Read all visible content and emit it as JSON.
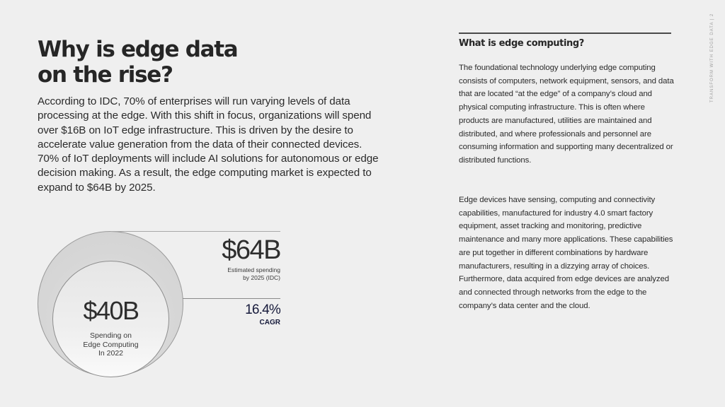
{
  "page": {
    "title_line1": "Why is edge data",
    "title_line2": "on the rise?",
    "intro": "According to IDC, 70% of enterprises will run varying levels of data processing at the edge. With this shift in focus, organizations will spend over $16B on IoT edge infrastructure. This is driven by the desire to accelerate value generation from the data of their connected devices. 70% of IoT deployments will include AI solutions for autonomous or edge decision making. As a result, the edge computing market is expected to expand to $64B by 2025.",
    "side_label": "TRANSFORM WITH EDGE DATA | 2"
  },
  "graphic": {
    "current": {
      "value": "$40B",
      "caption_line1": "Spending on",
      "caption_line2": "Edge Computing",
      "caption_line3": "In 2022"
    },
    "projected": {
      "value": "$64B",
      "caption_line1": "Estimated spending",
      "caption_line2": "by 2025 (IDC)"
    },
    "growth": {
      "value": "16.4%",
      "label": "CAGR"
    },
    "colors": {
      "accent": "#15193a",
      "outer_circle": "#d6d6d6",
      "inner_circle": "#ececec"
    }
  },
  "sidebar": {
    "heading": "What is edge computing?",
    "paragraph1": "The foundational technology underlying edge computing consists of computers, network equipment, sensors, and data that are located “at the edge” of a company’s cloud and physical computing infrastructure. This is often where products are manufactured, utilities are maintained and distributed, and where professionals and personnel are consuming information and supporting many decentralized or distributed functions.",
    "paragraph2": "Edge devices have sensing, computing and connectivity capabilities, manufactured for industry 4.0 smart factory equipment, asset tracking and monitoring, predictive maintenance and many more applications. These capabilities are put together in different combinations by hardware manufacturers, resulting in a dizzying array of choices. Furthermore, data acquired from edge devices are analyzed and connected through networks from the edge to the company’s data center and the cloud."
  }
}
